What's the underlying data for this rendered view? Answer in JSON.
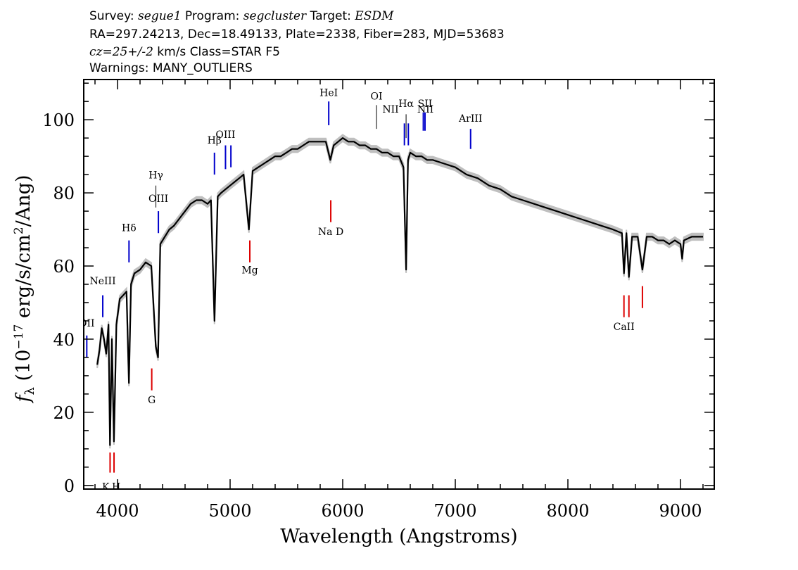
{
  "header": {
    "line1": [
      {
        "text": "Survey: ",
        "italic": false
      },
      {
        "text": "segue1",
        "italic": true
      },
      {
        "text": " Program: ",
        "italic": false
      },
      {
        "text": "segcluster",
        "italic": true
      },
      {
        "text": " Target: ",
        "italic": false
      },
      {
        "text": "ESDM",
        "italic": true
      }
    ],
    "line2": "RA=297.24213, Dec=18.49133, Plate=2338, Fiber=283, MJD=53683",
    "line3": [
      {
        "text": "cz=25+/-2",
        "italic": true
      },
      {
        "text": " km/s Class=STAR F5",
        "italic": false
      }
    ],
    "line4": "Warnings: MANY_OUTLIERS"
  },
  "chart_data": {
    "type": "line",
    "xlabel": "Wavelength (Angstroms)",
    "ylabel": "f_λ (10^-17 erg/s/cm^2/Ang)",
    "ylabel_parts": {
      "f": "f",
      "lambda": "λ",
      "open": " (10",
      "exp1": "−17",
      "mid": " erg/s/cm",
      "exp2": "2",
      "close": "/Ang)"
    },
    "xlim": [
      3700,
      9300
    ],
    "ylim": [
      -1,
      111
    ],
    "xticks": [
      4000,
      5000,
      6000,
      7000,
      8000,
      9000
    ],
    "yticks": [
      0,
      20,
      40,
      60,
      80,
      100
    ],
    "grid": false,
    "colors": {
      "spectrum": "#000000",
      "error_band": "#bfbfbf",
      "emission": "#0000cc",
      "absorption": "#dd0000",
      "thin": "#000000"
    },
    "spectrum": {
      "x": [
        3820,
        3840,
        3860,
        3880,
        3900,
        3920,
        3933,
        3950,
        3968,
        3990,
        4020,
        4050,
        4080,
        4101,
        4120,
        4150,
        4200,
        4250,
        4300,
        4340,
        4360,
        4380,
        4420,
        4460,
        4500,
        4550,
        4600,
        4650,
        4700,
        4750,
        4800,
        4830,
        4861,
        4890,
        4920,
        4960,
        5000,
        5040,
        5080,
        5120,
        5167,
        5200,
        5250,
        5300,
        5350,
        5400,
        5450,
        5500,
        5550,
        5600,
        5650,
        5700,
        5750,
        5800,
        5850,
        5890,
        5920,
        5960,
        6000,
        6050,
        6100,
        6150,
        6200,
        6250,
        6300,
        6350,
        6400,
        6450,
        6500,
        6540,
        6563,
        6580,
        6600,
        6650,
        6700,
        6750,
        6800,
        6900,
        7000,
        7100,
        7200,
        7300,
        7400,
        7500,
        7600,
        7700,
        7800,
        7900,
        8000,
        8100,
        8200,
        8300,
        8400,
        8480,
        8498,
        8520,
        8542,
        8570,
        8620,
        8662,
        8700,
        8750,
        8800,
        8850,
        8900,
        8950,
        9000,
        9015,
        9030,
        9100,
        9150,
        9200
      ],
      "y": [
        33,
        37,
        43,
        40,
        36,
        44,
        11,
        40,
        12,
        44,
        51,
        52,
        53,
        28,
        55,
        58,
        59,
        61,
        60,
        38,
        35,
        66,
        68,
        70,
        71,
        73,
        75,
        77,
        78,
        78,
        77,
        78,
        45,
        79,
        80,
        81,
        82,
        83,
        84,
        85,
        70,
        86,
        87,
        88,
        89,
        90,
        90,
        91,
        92,
        92,
        93,
        94,
        94,
        94,
        94,
        89,
        93,
        94,
        95,
        94,
        94,
        93,
        93,
        92,
        92,
        91,
        91,
        90,
        90,
        87,
        59,
        89,
        91,
        90,
        90,
        89,
        89,
        88,
        87,
        85,
        84,
        82,
        81,
        79,
        78,
        77,
        76,
        75,
        74,
        73,
        72,
        71,
        70,
        69,
        58,
        69,
        57,
        68,
        68,
        59,
        68,
        68,
        67,
        67,
        66,
        67,
        66,
        62,
        67,
        68,
        68,
        68
      ]
    },
    "line_markers": [
      {
        "label": "OII",
        "x": 3727,
        "kind": "emission",
        "y0": 35,
        "y1": 41,
        "label_y": 43.5
      },
      {
        "label": "NeIII",
        "x": 3869,
        "kind": "emission",
        "y0": 46,
        "y1": 52,
        "label_y": 55
      },
      {
        "label": "Hδ",
        "x": 4102,
        "kind": "emission",
        "y0": 61,
        "y1": 67,
        "label_y": 69.5
      },
      {
        "label": "Hγ",
        "x": 4341,
        "kind": "thin",
        "y0": 76,
        "y1": 82,
        "label_y": 84
      },
      {
        "label": "OIII",
        "x": 4363,
        "kind": "emission",
        "y0": 69,
        "y1": 75,
        "label_y": 77.5
      },
      {
        "label": "Hβ",
        "x": 4861,
        "kind": "emission",
        "y0": 85,
        "y1": 91,
        "label_y": 93.5
      },
      {
        "label": "OIII",
        "x": 4959,
        "kind": "emission",
        "y0": 86.5,
        "y1": 93,
        "label_y": 95
      },
      {
        "label": "",
        "x": 5007,
        "kind": "emission",
        "y0": 87,
        "y1": 93,
        "label_y": 0
      },
      {
        "label": "HeI",
        "x": 5876,
        "kind": "emission",
        "y0": 98.5,
        "y1": 105,
        "label_y": 106.5
      },
      {
        "label": "OI",
        "x": 6300,
        "kind": "thin",
        "y0": 97.5,
        "y1": 104,
        "label_y": 105.5
      },
      {
        "label": "NII",
        "x": 6548,
        "kind": "emission",
        "y0": 93,
        "y1": 99,
        "label_y": 102
      },
      {
        "label": "Hα",
        "x": 6563,
        "kind": "thin",
        "y0": 95,
        "y1": 101.5,
        "label_y": 103.5
      },
      {
        "label": "",
        "x": 6583,
        "kind": "emission",
        "y0": 93,
        "y1": 99,
        "label_y": 0
      },
      {
        "label": "NII",
        "x": 6716,
        "kind": "emission",
        "y0": 97,
        "y1": 102,
        "label_y": 102
      },
      {
        "label": "SII",
        "x": 6731,
        "kind": "emission",
        "y0": 97,
        "y1": 102,
        "label_y": 103.5
      },
      {
        "label": "ArIII",
        "x": 7136,
        "kind": "emission",
        "y0": 92,
        "y1": 97.5,
        "label_y": 99.5
      },
      {
        "label": "K",
        "x": 3934,
        "kind": "absorption",
        "y0": 3.5,
        "y1": 9,
        "label_y": -1.3
      },
      {
        "label": "H",
        "x": 3969,
        "kind": "absorption",
        "y0": 3.5,
        "y1": 9,
        "label_y": -1.3
      },
      {
        "label": "G",
        "x": 4304,
        "kind": "absorption",
        "y0": 26,
        "y1": 32,
        "label_y": 22.5
      },
      {
        "label": "Mg",
        "x": 5175,
        "kind": "absorption",
        "y0": 61,
        "y1": 67,
        "label_y": 58
      },
      {
        "label": "Na D",
        "x": 5894,
        "kind": "absorption",
        "y0": 72,
        "y1": 78,
        "label_y": 68.5
      },
      {
        "label": "CaII",
        "x": 8498,
        "kind": "absorption",
        "y0": 46,
        "y1": 52,
        "label_y": 42.5
      },
      {
        "label": "",
        "x": 8542,
        "kind": "absorption",
        "y0": 46,
        "y1": 52,
        "label_y": 0
      },
      {
        "label": "",
        "x": 8662,
        "kind": "absorption",
        "y0": 48.5,
        "y1": 54.5,
        "label_y": 0
      }
    ]
  }
}
